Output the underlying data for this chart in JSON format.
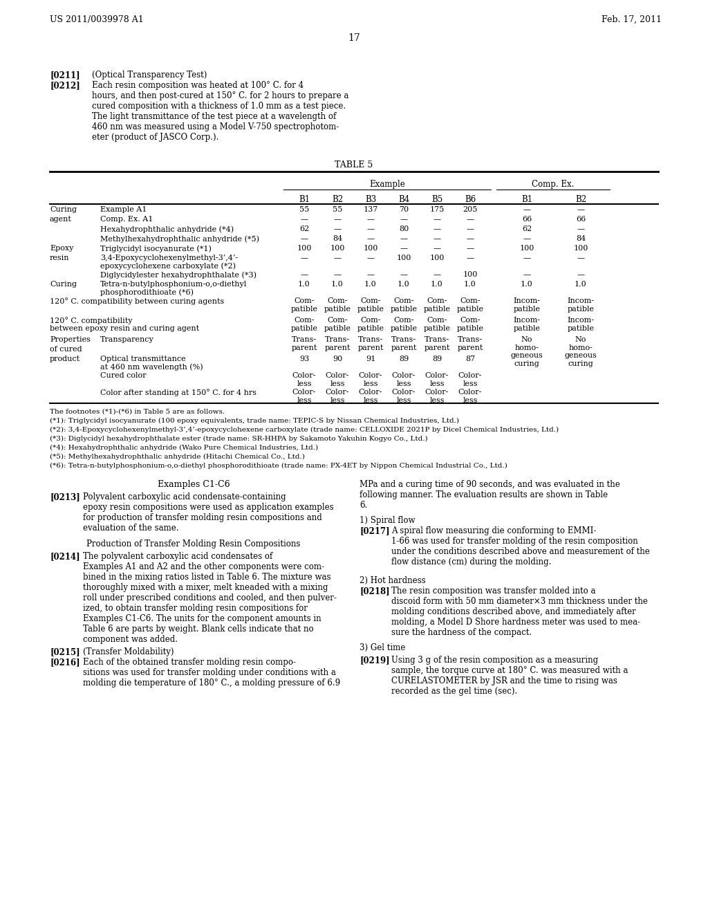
{
  "background_color": "#ffffff",
  "header_left": "US 2011/0039978 A1",
  "header_right": "Feb. 17, 2011",
  "page_number": "17",
  "para_0211_label": "[0211]",
  "para_0211_text": "(Optical Transparency Test)",
  "para_0212_label": "[0212]",
  "para_0212_text": "Each resin composition was heated at 100° C. for 4\nhours, and then post-cured at 150° C. for 2 hours to prepare a\ncured composition with a thickness of 1.0 mm as a test piece.\nThe light transmittance of the test piece at a wavelength of\n460 nm was measured using a Model V-750 spectrophotom-\neter (product of JASCO Corp.).",
  "table_title": "TABLE 5",
  "col_header_example": "Example",
  "col_header_comp": "Comp. Ex.",
  "col_labels_example": [
    "B1",
    "B2",
    "B3",
    "B4",
    "B5",
    "B6"
  ],
  "col_labels_comp": [
    "B1",
    "B2"
  ],
  "footnotes": [
    "The footnotes (*1)-(*6) in Table 5 are as follows.",
    "(*1): Triglycidyl isocyanurate (100 epoxy equivalents, trade name: TEPIC-S by Nissan Chemical Industries, Ltd.)",
    "(*2): 3,4-Epoxycyclohexenylmethyl-3’,4’-epoxycyclohexene carboxylate (trade name: CELLOXIDE 2021P by Dicel Chemical Industries, Ltd.)",
    "(*3): Diglycidyl hexahydrophthalate ester (trade name: SR-HHPA by Sakamoto Yakuhin Kogyo Co., Ltd.)",
    "(*4): Hexahydrophthalic anhydride (Wako Pure Chemical Industries, Ltd.)",
    "(*5): Methylhexahydrophthalic anhydride (Hitachi Chemical Co., Ltd.)",
    "(*6): Tetra-n-butylphosphonium-o,o-diethyl phosphorodithioate (trade name: PX-4ET by Nippon Chemical Industrial Co., Ltd.)"
  ],
  "section_title": "Examples C1-C6",
  "para_0213_label": "[0213]",
  "para_0213_text": "Polyvalent carboxylic acid condensate-containing\nepoxy resin compositions were used as application examples\nfor production of transfer molding resin compositions and\nevaluation of the same.",
  "subsection_title": "Production of Transfer Molding Resin Compositions",
  "para_0214_label": "[0214]",
  "para_0214_text": "The polyvalent carboxylic acid condensates of\nExamples A1 and A2 and the other components were com-\nbined in the mixing ratios listed in Table 6. The mixture was\nthoroughly mixed with a mixer, melt kneaded with a mixing\nroll under prescribed conditions and cooled, and then pulver-\nized, to obtain transfer molding resin compositions for\nExamples C1-C6. The units for the component amounts in\nTable 6 are parts by weight. Blank cells indicate that no\ncomponent was added.",
  "para_0215_label": "[0215]",
  "para_0215_text": "(Transfer Moldability)",
  "para_0216_label": "[0216]",
  "para_0216_text": "Each of the obtained transfer molding resin compo-\nsitions was used for transfer molding under conditions with a\nmolding die temperature of 180° C., a molding pressure of 6.9",
  "right_col_text1": "MPa and a curing time of 90 seconds, and was evaluated in the\nfollowing manner. The evaluation results are shown in Table\n6.",
  "right_col_section1": "1) Spiral flow",
  "para_0217_label": "[0217]",
  "para_0217_text": "A spiral flow measuring die conforming to EMMI-\n1-66 was used for transfer molding of the resin composition\nunder the conditions described above and measurement of the\nflow distance (cm) during the molding.",
  "right_col_section2": "2) Hot hardness",
  "para_0218_label": "[0218]",
  "para_0218_text": "The resin composition was transfer molded into a\ndiscoid form with 50 mm diameter×3 mm thickness under the\nmolding conditions described above, and immediately after\nmolding, a Model D Shore hardness meter was used to mea-\nsure the hardness of the compact.",
  "right_col_section3": "3) Gel time",
  "para_0219_label": "[0219]",
  "para_0219_text": "Using 3 g of the resin composition as a measuring\nsample, the torque curve at 180° C. was measured with a\nCURELASTOMETER by JSR and the time to rising was\nrecorded as the gel time (sec)."
}
